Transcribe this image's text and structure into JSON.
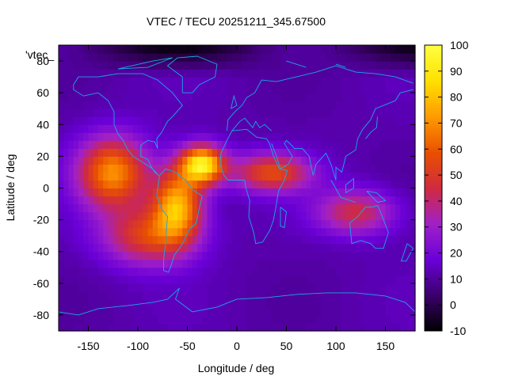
{
  "chart_data": {
    "type": "heatmap",
    "title": "VTEC / TECU 20251211_345.67500",
    "xlabel": "Longitude / deg",
    "ylabel": "Latitude / deg",
    "legend_key": "'vtec_",
    "xlim": [
      -180,
      180
    ],
    "ylim": [
      -90,
      90
    ],
    "x_ticks": [
      -150,
      -100,
      -50,
      0,
      50,
      100,
      150
    ],
    "y_ticks": [
      -80,
      -60,
      -40,
      -20,
      0,
      20,
      40,
      60,
      80
    ],
    "colorbar": {
      "range": [
        -10,
        100
      ],
      "ticks": [
        -10,
        0,
        10,
        20,
        30,
        40,
        50,
        60,
        70,
        80,
        90,
        100
      ],
      "palette": [
        "#000000",
        "#3a006a",
        "#6a00d8",
        "#a020c8",
        "#d02a40",
        "#e85000",
        "#ff9a00",
        "#ffe000",
        "#ffff40"
      ]
    },
    "grid": false,
    "grid_resolution_deg": [
      5,
      5
    ],
    "field_features": [
      {
        "lon": -35,
        "lat": 15,
        "vtec": 92
      },
      {
        "lon": -125,
        "lat": 10,
        "vtec": 70
      },
      {
        "lon": -60,
        "lat": -10,
        "vtec": 75
      },
      {
        "lon": 35,
        "lat": 10,
        "vtec": 55
      },
      {
        "lon": 120,
        "lat": -15,
        "vtec": 45
      }
    ],
    "background_vtec": 12,
    "coastline_color": "#1aa8e8"
  }
}
